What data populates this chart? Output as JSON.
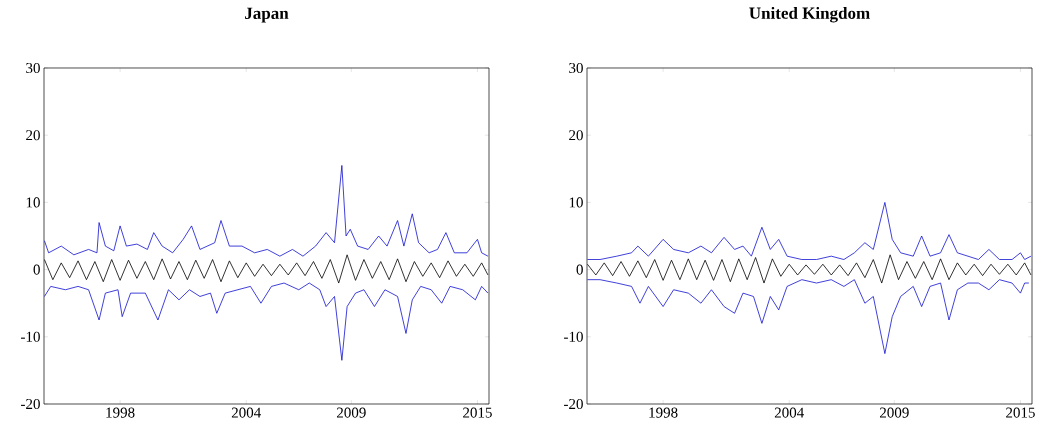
{
  "chart_data": [
    {
      "type": "line",
      "title": "Japan",
      "xlim": [
        1994.38,
        2015.55
      ],
      "ylim": [
        -20,
        30
      ],
      "xticks": [
        1998,
        2004,
        2009,
        2015
      ],
      "yticks": [
        -20,
        -10,
        0,
        10,
        20,
        30
      ],
      "marker": "none",
      "line_style": "solid",
      "series": [
        {
          "color": "#000000",
          "x": [
            1994.4,
            1994.8,
            1995.2,
            1995.6,
            1996.0,
            1996.4,
            1996.8,
            1997.2,
            1997.6,
            1998.0,
            1998.4,
            1998.8,
            1999.2,
            1999.6,
            2000.0,
            2000.4,
            2000.8,
            2001.2,
            2001.6,
            2002.0,
            2002.4,
            2002.8,
            2003.2,
            2003.6,
            2004.0,
            2004.4,
            2004.8,
            2005.2,
            2005.6,
            2006.0,
            2006.4,
            2006.8,
            2007.2,
            2007.6,
            2008.0,
            2008.4,
            2008.8,
            2009.2,
            2009.6,
            2010.0,
            2010.4,
            2010.8,
            2011.2,
            2011.6,
            2012.0,
            2012.4,
            2012.8,
            2013.2,
            2013.6,
            2014.0,
            2014.4,
            2014.8,
            2015.2,
            2015.5
          ],
          "values": [
            1.5,
            -1.5,
            1.0,
            -1.2,
            1.3,
            -1.5,
            1.2,
            -1.8,
            1.5,
            -1.6,
            1.4,
            -1.3,
            1.2,
            -1.5,
            1.6,
            -1.4,
            1.2,
            -1.5,
            1.4,
            -1.3,
            1.5,
            -1.8,
            1.3,
            -1.2,
            1.0,
            -1.0,
            0.8,
            -0.9,
            0.8,
            -0.8,
            1.0,
            -0.9,
            1.2,
            -1.3,
            1.5,
            -2.0,
            2.2,
            -1.6,
            1.5,
            -1.3,
            1.2,
            -1.5,
            1.6,
            -1.8,
            1.2,
            -1.0,
            1.0,
            -1.2,
            1.3,
            -1.0,
            0.8,
            -1.0,
            1.0,
            -0.8
          ]
        },
        {
          "color": "#1010d0",
          "x": [
            1994.4,
            1994.6,
            1995.2,
            1995.8,
            1996.5,
            1996.9,
            1997.0,
            1997.3,
            1997.7,
            1998.0,
            1998.3,
            1998.8,
            1999.3,
            1999.6,
            2000.0,
            2000.5,
            2001.0,
            2001.4,
            2001.8,
            2002.5,
            2002.8,
            2003.2,
            2003.8,
            2004.4,
            2005.0,
            2005.6,
            2006.2,
            2006.7,
            2007.3,
            2007.8,
            2008.2,
            2008.55,
            2008.75,
            2008.95,
            2009.3,
            2009.8,
            2010.3,
            2010.7,
            2011.2,
            2011.5,
            2011.9,
            2012.2,
            2012.7,
            2013.1,
            2013.5,
            2013.9,
            2014.5,
            2015.0,
            2015.2,
            2015.5
          ],
          "values": [
            4.3,
            2.5,
            3.5,
            2.2,
            3.0,
            2.5,
            7.0,
            3.5,
            2.8,
            6.5,
            3.5,
            3.8,
            3.0,
            5.5,
            3.5,
            2.5,
            4.5,
            6.5,
            3.0,
            4.0,
            7.3,
            3.5,
            3.5,
            2.5,
            3.0,
            2.0,
            3.0,
            2.0,
            3.5,
            5.5,
            4.0,
            15.5,
            5.0,
            6.0,
            3.5,
            3.0,
            5.0,
            3.5,
            7.3,
            3.5,
            8.3,
            4.0,
            2.5,
            3.0,
            5.5,
            2.5,
            2.5,
            4.5,
            2.5,
            2.0
          ]
        },
        {
          "color": "#1010d0",
          "x": [
            1994.4,
            1994.7,
            1995.4,
            1996.0,
            1996.5,
            1997.0,
            1997.3,
            1997.9,
            1998.1,
            1998.5,
            1999.2,
            1999.8,
            2000.3,
            2000.8,
            2001.3,
            2001.8,
            2002.3,
            2002.6,
            2003.0,
            2003.6,
            2004.2,
            2004.7,
            2005.2,
            2005.8,
            2006.5,
            2007.0,
            2007.5,
            2007.8,
            2008.2,
            2008.55,
            2008.8,
            2009.2,
            2009.6,
            2010.1,
            2010.6,
            2011.2,
            2011.6,
            2011.9,
            2012.3,
            2012.8,
            2013.3,
            2013.7,
            2014.3,
            2014.9,
            2015.2,
            2015.5
          ],
          "values": [
            -4.0,
            -2.5,
            -3.0,
            -2.5,
            -3.0,
            -7.5,
            -3.5,
            -3.0,
            -7.0,
            -3.5,
            -3.5,
            -7.5,
            -3.0,
            -4.5,
            -3.0,
            -4.0,
            -3.5,
            -6.5,
            -3.5,
            -3.0,
            -2.5,
            -5.0,
            -2.5,
            -2.0,
            -3.0,
            -2.0,
            -3.0,
            -5.5,
            -4.0,
            -13.5,
            -5.5,
            -3.5,
            -3.0,
            -5.5,
            -3.0,
            -4.0,
            -9.5,
            -4.5,
            -2.5,
            -3.0,
            -5.0,
            -2.5,
            -3.0,
            -4.5,
            -2.5,
            -3.5
          ]
        }
      ]
    },
    {
      "type": "line",
      "title": "United Kingdom",
      "xlim": [
        1994.38,
        2015.55
      ],
      "ylim": [
        -20,
        30
      ],
      "xticks": [
        1998,
        2004,
        2009,
        2015
      ],
      "yticks": [
        -20,
        -10,
        0,
        10,
        20,
        30
      ],
      "marker": "none",
      "line_style": "solid",
      "series": [
        {
          "color": "#000000",
          "x": [
            1994.4,
            1994.8,
            1995.2,
            1995.6,
            1996.0,
            1996.4,
            1996.8,
            1997.2,
            1997.6,
            1998.0,
            1998.4,
            1998.8,
            1999.2,
            1999.6,
            2000.0,
            2000.4,
            2000.8,
            2001.2,
            2001.6,
            2002.0,
            2002.4,
            2002.8,
            2003.2,
            2003.6,
            2004.0,
            2004.4,
            2004.8,
            2005.2,
            2005.6,
            2006.0,
            2006.4,
            2006.8,
            2007.2,
            2007.6,
            2008.0,
            2008.4,
            2008.8,
            2009.2,
            2009.6,
            2010.0,
            2010.4,
            2010.8,
            2011.2,
            2011.6,
            2012.0,
            2012.4,
            2012.8,
            2013.2,
            2013.6,
            2014.0,
            2014.4,
            2014.8,
            2015.2,
            2015.5
          ],
          "values": [
            0.8,
            -0.8,
            1.0,
            -0.9,
            1.2,
            -1.0,
            1.3,
            -1.2,
            1.5,
            -1.6,
            1.4,
            -1.5,
            1.6,
            -1.5,
            1.4,
            -1.6,
            1.5,
            -1.8,
            1.6,
            -1.5,
            1.8,
            -2.0,
            1.6,
            -1.0,
            0.8,
            -0.8,
            0.7,
            -0.7,
            0.8,
            -0.8,
            0.7,
            -0.9,
            1.0,
            -1.2,
            1.5,
            -2.0,
            2.2,
            -1.5,
            1.2,
            -1.3,
            1.2,
            -1.5,
            1.6,
            -1.5,
            1.0,
            -0.8,
            0.8,
            -0.9,
            0.8,
            -0.7,
            0.8,
            -0.8,
            1.0,
            -0.8
          ]
        },
        {
          "color": "#1010d0",
          "x": [
            1994.4,
            1995.0,
            1995.8,
            1996.5,
            1996.8,
            1997.3,
            1998.0,
            1998.5,
            1999.2,
            1999.8,
            2000.3,
            2000.9,
            2001.4,
            2001.8,
            2002.2,
            2002.7,
            2003.1,
            2003.5,
            2003.9,
            2004.6,
            2005.3,
            2006.0,
            2006.6,
            2007.1,
            2007.6,
            2008.0,
            2008.55,
            2008.9,
            2009.3,
            2009.9,
            2010.3,
            2010.7,
            2011.2,
            2011.6,
            2012.0,
            2012.5,
            2013.0,
            2013.5,
            2014.0,
            2014.6,
            2015.0,
            2015.2,
            2015.5
          ],
          "values": [
            1.5,
            1.5,
            2.0,
            2.5,
            3.5,
            2.0,
            4.5,
            3.0,
            2.5,
            3.5,
            2.5,
            4.8,
            3.0,
            3.5,
            2.0,
            6.3,
            3.0,
            4.5,
            2.0,
            1.5,
            1.5,
            2.0,
            1.5,
            2.5,
            4.0,
            3.0,
            10.0,
            4.5,
            2.5,
            2.0,
            5.0,
            2.0,
            2.5,
            5.2,
            2.5,
            2.0,
            1.5,
            3.0,
            1.5,
            1.5,
            2.5,
            1.5,
            2.0
          ]
        },
        {
          "color": "#1010d0",
          "x": [
            1994.4,
            1995.0,
            1995.8,
            1996.5,
            1996.9,
            1997.3,
            1998.0,
            1998.5,
            1999.2,
            1999.8,
            2000.3,
            2000.9,
            2001.4,
            2001.8,
            2002.3,
            2002.7,
            2003.1,
            2003.5,
            2003.9,
            2004.6,
            2005.3,
            2006.0,
            2006.6,
            2007.1,
            2007.6,
            2008.0,
            2008.55,
            2008.9,
            2009.3,
            2009.9,
            2010.3,
            2010.7,
            2011.2,
            2011.6,
            2012.0,
            2012.5,
            2013.0,
            2013.5,
            2014.0,
            2014.6,
            2015.0,
            2015.2,
            2015.4
          ],
          "values": [
            -1.5,
            -1.5,
            -2.0,
            -2.5,
            -5.0,
            -2.5,
            -5.5,
            -3.0,
            -3.5,
            -5.0,
            -3.0,
            -5.5,
            -6.5,
            -3.5,
            -4.0,
            -8.0,
            -4.0,
            -6.0,
            -2.5,
            -1.5,
            -2.0,
            -1.5,
            -2.5,
            -1.5,
            -5.0,
            -4.0,
            -12.5,
            -7.0,
            -4.0,
            -2.5,
            -5.5,
            -2.5,
            -2.0,
            -7.5,
            -3.0,
            -2.0,
            -2.0,
            -3.0,
            -1.5,
            -2.0,
            -3.5,
            -2.0,
            -2.0
          ]
        }
      ]
    }
  ]
}
